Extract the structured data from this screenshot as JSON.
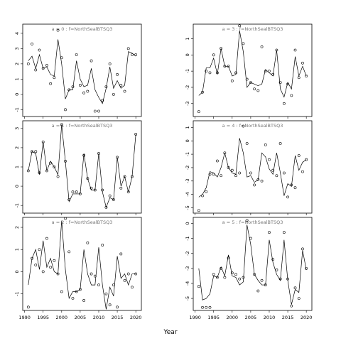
{
  "figure": {
    "xlabel": "Year"
  },
  "chart_data": [
    {
      "type": "line",
      "title": "a = 0  :  f=NorthSealBTSQ3",
      "xlim": [
        1989.5,
        2021.5
      ],
      "ylim": [
        -1.45,
        4.6
      ],
      "yticks": [
        -1,
        0,
        1,
        2,
        3,
        4
      ],
      "xticks": [
        1990,
        1995,
        2000,
        2005,
        2010,
        2015,
        2020
      ],
      "show_x_tick_labels": false,
      "series": [
        {
          "role": "fitted-line",
          "x": [
            1991,
            1992,
            1993,
            1994,
            1995,
            1996,
            1997,
            1998,
            1999,
            2000,
            2001,
            2002,
            2003,
            2004,
            2005,
            2006,
            2007,
            2008,
            2009,
            2010,
            2011,
            2012,
            2013,
            2014,
            2015,
            2016,
            2017,
            2018,
            2019,
            2020
          ],
          "y": [
            2.2,
            2.5,
            1.7,
            2.6,
            1.7,
            1.8,
            1.3,
            1.2,
            3.6,
            2.0,
            -0.3,
            0.3,
            0.3,
            2.2,
            1.0,
            0.5,
            0.6,
            1.7,
            0.3,
            -0.2,
            -0.6,
            0.4,
            1.8,
            0.4,
            0.9,
            0.4,
            0.6,
            2.8,
            2.7,
            2.5
          ]
        },
        {
          "role": "observed-points",
          "x": [
            1991,
            1992,
            1993,
            1994,
            1995,
            1996,
            1997,
            1998,
            1999,
            2000,
            2001,
            2002,
            2003,
            2004,
            2005,
            2006,
            2007,
            2008,
            2009,
            2010,
            2011,
            2012,
            2013,
            2014,
            2015,
            2016,
            2017,
            2018,
            2019,
            2020
          ],
          "y": [
            2.0,
            3.3,
            1.6,
            2.9,
            1.7,
            1.9,
            0.7,
            1.1,
            4.2,
            2.4,
            -1.0,
            0.3,
            0.5,
            2.6,
            0.6,
            0.1,
            0.2,
            2.2,
            -1.1,
            -1.1,
            -0.4,
            0.5,
            2.0,
            0.0,
            1.3,
            0.6,
            0.2,
            3.0,
            2.6,
            2.6
          ]
        }
      ]
    },
    {
      "type": "line",
      "title": "a = 3  :  f=NorthSealBTSQ3",
      "xlim": [
        1989.5,
        2021.5
      ],
      "ylim": [
        -3.8,
        1.9
      ],
      "yticks": [
        -3,
        -2,
        -1,
        0,
        1
      ],
      "xticks": [
        1990,
        1995,
        2000,
        2005,
        2010,
        2015,
        2020
      ],
      "show_x_tick_labels": false,
      "series": [
        {
          "role": "fitted-line",
          "x": [
            1991,
            1992,
            1993,
            1994,
            1995,
            1996,
            1997,
            1998,
            1999,
            2000,
            2001,
            2002,
            2003,
            2004,
            2005,
            2006,
            2007,
            2008,
            2009,
            2010,
            2011,
            2012,
            2013,
            2014,
            2015,
            2016,
            2017,
            2018,
            2019,
            2020
          ],
          "y": [
            -2.5,
            -2.3,
            -0.8,
            -0.8,
            -0.2,
            -1.2,
            0.4,
            -0.7,
            -0.7,
            -1.3,
            -1.2,
            1.5,
            0.2,
            -2.0,
            -1.7,
            -1.8,
            -1.9,
            -1.8,
            -0.9,
            -1.1,
            -1.3,
            0.3,
            -2.1,
            -2.6,
            -1.7,
            -2.1,
            -0.1,
            -1.3,
            -0.7,
            -1.3
          ]
        },
        {
          "role": "observed-points",
          "x": [
            1991,
            1992,
            1993,
            1994,
            1995,
            1996,
            1997,
            1998,
            1999,
            2000,
            2001,
            2002,
            2003,
            2004,
            2005,
            2006,
            2007,
            2008,
            2009,
            2010,
            2011,
            2012,
            2013,
            2014,
            2015,
            2016,
            2017,
            2018,
            2019,
            2020
          ],
          "y": [
            -3.5,
            -2.3,
            -1.0,
            -1.1,
            0.0,
            -1.1,
            0.4,
            -0.7,
            -0.7,
            -1.6,
            -1.1,
            1.8,
            0.7,
            -1.5,
            -1.7,
            -2.1,
            -2.2,
            0.5,
            -1.0,
            -1.0,
            -1.2,
            0.3,
            -1.7,
            -3.0,
            -1.8,
            -2.5,
            0.3,
            -1.4,
            -0.5,
            -1.3
          ]
        }
      ]
    },
    {
      "type": "line",
      "title": "a = 1  :  f=NorthSealBTSQ3",
      "xlim": [
        1989.5,
        2021.5
      ],
      "ylim": [
        -1.4,
        3.4
      ],
      "yticks": [
        -1,
        0,
        1,
        2,
        3
      ],
      "xticks": [
        1990,
        1995,
        2000,
        2005,
        2010,
        2015,
        2020
      ],
      "show_x_tick_labels": false,
      "series": [
        {
          "role": "fitted-line",
          "x": [
            1991,
            1992,
            1993,
            1994,
            1995,
            1996,
            1997,
            1998,
            1999,
            2000,
            2001,
            2002,
            2003,
            2004,
            2005,
            2006,
            2007,
            2008,
            2009,
            2010,
            2011,
            2012,
            2013,
            2014,
            2015,
            2016,
            2017,
            2018,
            2019,
            2020
          ],
          "y": [
            0.8,
            1.8,
            1.7,
            0.6,
            2.3,
            0.8,
            1.3,
            1.0,
            0.6,
            3.2,
            1.3,
            -0.8,
            -0.4,
            -0.4,
            -0.4,
            1.7,
            0.4,
            -0.2,
            -0.2,
            1.7,
            -0.3,
            -1.1,
            -0.6,
            -0.7,
            1.5,
            0.0,
            0.5,
            -0.3,
            0.5,
            2.7
          ]
        },
        {
          "role": "observed-points",
          "x": [
            1991,
            1992,
            1993,
            1994,
            1995,
            1996,
            1997,
            1998,
            1999,
            2000,
            2001,
            2002,
            2003,
            2004,
            2005,
            2006,
            2007,
            2008,
            2009,
            2010,
            2011,
            2012,
            2013,
            2014,
            2015,
            2016,
            2017,
            2018,
            2019,
            2020
          ],
          "y": [
            0.8,
            1.8,
            1.8,
            0.7,
            2.3,
            0.8,
            1.2,
            1.0,
            0.5,
            3.2,
            1.3,
            -0.7,
            -0.3,
            -0.3,
            -0.4,
            1.6,
            0.4,
            -0.1,
            -0.2,
            1.7,
            -0.2,
            -1.1,
            -0.5,
            -0.7,
            1.5,
            -0.1,
            0.5,
            -0.3,
            0.5,
            2.7
          ]
        }
      ]
    },
    {
      "type": "line",
      "title": "a = 4  :  f=NorthSealBTSQ3",
      "xlim": [
        1989.5,
        2021.5
      ],
      "ylim": [
        -5.4,
        1.5
      ],
      "yticks": [
        -5,
        -4,
        -3,
        -2,
        -1,
        0,
        1
      ],
      "xticks": [
        1990,
        1995,
        2000,
        2005,
        2010,
        2015,
        2020
      ],
      "show_x_tick_labels": false,
      "series": [
        {
          "role": "fitted-line",
          "x": [
            1991,
            1992,
            1993,
            1994,
            1995,
            1996,
            1997,
            1998,
            1999,
            2000,
            2001,
            2002,
            2003,
            2004,
            2005,
            2006,
            2007,
            2008,
            2009,
            2010,
            2011,
            2012,
            2013,
            2014,
            2015,
            2016,
            2017,
            2018,
            2019,
            2020
          ],
          "y": [
            -4.2,
            -4.0,
            -3.5,
            -2.3,
            -2.4,
            -2.7,
            -2.0,
            -0.9,
            -2.0,
            -2.4,
            -2.5,
            0.2,
            -0.9,
            -2.7,
            -2.6,
            -3.1,
            -2.9,
            -0.9,
            -1.2,
            -2.1,
            -2.5,
            -0.9,
            -2.4,
            -4.1,
            -3.2,
            -3.4,
            -1.1,
            -2.2,
            -1.6,
            -1.4
          ]
        },
        {
          "role": "observed-points",
          "x": [
            1991,
            1992,
            1993,
            1994,
            1995,
            1996,
            1997,
            1998,
            1999,
            2000,
            2001,
            2002,
            2003,
            2004,
            2005,
            2006,
            2007,
            2008,
            2009,
            2010,
            2011,
            2012,
            2013,
            2014,
            2015,
            2016,
            2017,
            2018,
            2019,
            2020
          ],
          "y": [
            -5.2,
            -4.1,
            -3.8,
            -2.5,
            -2.5,
            -1.5,
            -2.6,
            -0.9,
            -2.0,
            -2.2,
            -2.6,
            -2.4,
            1.1,
            -0.2,
            -2.4,
            -3.3,
            -2.9,
            -3.0,
            -0.3,
            -1.4,
            -2.2,
            -2.6,
            -0.2,
            -2.4,
            -4.2,
            -3.3,
            -3.5,
            -1.1,
            -2.3,
            -1.4
          ]
        }
      ]
    },
    {
      "type": "line",
      "title": "a = 2  :  f=NorthSealBTSQ3",
      "xlim": [
        1989.5,
        2021.5
      ],
      "ylim": [
        -1.75,
        2.45
      ],
      "yticks": [
        -1,
        0,
        1,
        2
      ],
      "xticks": [
        1990,
        1995,
        2000,
        2005,
        2010,
        2015,
        2020
      ],
      "show_x_tick_labels": true,
      "series": [
        {
          "role": "fitted-line",
          "x": [
            1991,
            1992,
            1993,
            1994,
            1995,
            1996,
            1997,
            1998,
            1999,
            2000,
            2001,
            2002,
            2003,
            2004,
            2005,
            2006,
            2007,
            2008,
            2009,
            2010,
            2011,
            2012,
            2013,
            2014,
            2015,
            2016,
            2017,
            2018,
            2019,
            2020
          ],
          "y": [
            -0.6,
            0.6,
            1.0,
            0.1,
            1.4,
            0.2,
            0.6,
            0.0,
            -0.1,
            2.3,
            0.1,
            -1.2,
            -0.9,
            -0.9,
            -0.8,
            1.0,
            -0.1,
            -0.6,
            -0.6,
            1.1,
            -0.6,
            -1.7,
            -0.7,
            -1.1,
            0.7,
            -0.3,
            -0.1,
            -0.6,
            -0.1,
            -0.1
          ]
        },
        {
          "role": "observed-points",
          "x": [
            1991,
            1992,
            1993,
            1994,
            1995,
            1996,
            1997,
            1998,
            1999,
            2000,
            2001,
            2002,
            2003,
            2004,
            2005,
            2006,
            2007,
            2008,
            2009,
            2010,
            2011,
            2012,
            2013,
            2014,
            2015,
            2016,
            2017,
            2018,
            2019,
            2020
          ],
          "y": [
            -1.6,
            0.6,
            0.3,
            1.0,
            0.0,
            1.5,
            0.2,
            0.5,
            -0.1,
            -0.9,
            2.4,
            0.9,
            -1.2,
            -0.9,
            -0.8,
            -1.3,
            1.3,
            -0.1,
            -0.2,
            -0.6,
            1.2,
            -1.0,
            -1.5,
            -0.6,
            -1.6,
            0.8,
            -0.4,
            -0.1,
            -0.7,
            -0.1
          ]
        }
      ]
    },
    {
      "type": "line",
      "title": "a = 5  :  f=NorthSealBTSQ3",
      "xlim": [
        1989.5,
        2021.5
      ],
      "ylim": [
        -5.8,
        0.4
      ],
      "yticks": [
        -5,
        -4,
        -3,
        -2,
        -1,
        0
      ],
      "xticks": [
        1990,
        1995,
        2000,
        2005,
        2010,
        2015,
        2020
      ],
      "show_x_tick_labels": true,
      "series": [
        {
          "role": "fitted-line",
          "x": [
            1991,
            1992,
            1993,
            1994,
            1995,
            1996,
            1997,
            1998,
            1999,
            2000,
            2001,
            2002,
            2003,
            2004,
            2005,
            2006,
            2007,
            2008,
            2009,
            2010,
            2011,
            2012,
            2013,
            2014,
            2015,
            2016,
            2017,
            2018,
            2019,
            2020
          ],
          "y": [
            -3.0,
            -5.1,
            -5.0,
            -4.7,
            -3.5,
            -3.6,
            -2.9,
            -3.5,
            -2.1,
            -3.5,
            -3.6,
            -4.1,
            -3.9,
            -0.1,
            -1.4,
            -3.4,
            -3.8,
            -4.1,
            -4.1,
            -1.1,
            -2.6,
            -3.4,
            -3.8,
            -1.1,
            -3.8,
            -5.4,
            -4.4,
            -4.6,
            -1.8,
            -3.1
          ]
        },
        {
          "role": "observed-points",
          "x": [
            1991,
            1992,
            1993,
            1994,
            1995,
            1996,
            1997,
            1998,
            1999,
            2000,
            2001,
            2002,
            2003,
            2004,
            2005,
            2006,
            2007,
            2008,
            2009,
            2010,
            2011,
            2012,
            2013,
            2014,
            2015,
            2016,
            2017,
            2018,
            2019,
            2020
          ],
          "y": [
            -4.2,
            -5.6,
            -5.6,
            -5.6,
            -3.4,
            -3.6,
            -3.0,
            -3.6,
            -2.3,
            -3.3,
            -3.4,
            -3.7,
            -3.6,
            0.2,
            -1.0,
            -3.4,
            -4.5,
            -3.8,
            -4.1,
            -0.6,
            -2.4,
            -3.1,
            -3.7,
            -0.6,
            -3.7,
            -5.5,
            -4.3,
            -5.0,
            -1.7,
            -3.0
          ]
        }
      ]
    }
  ]
}
